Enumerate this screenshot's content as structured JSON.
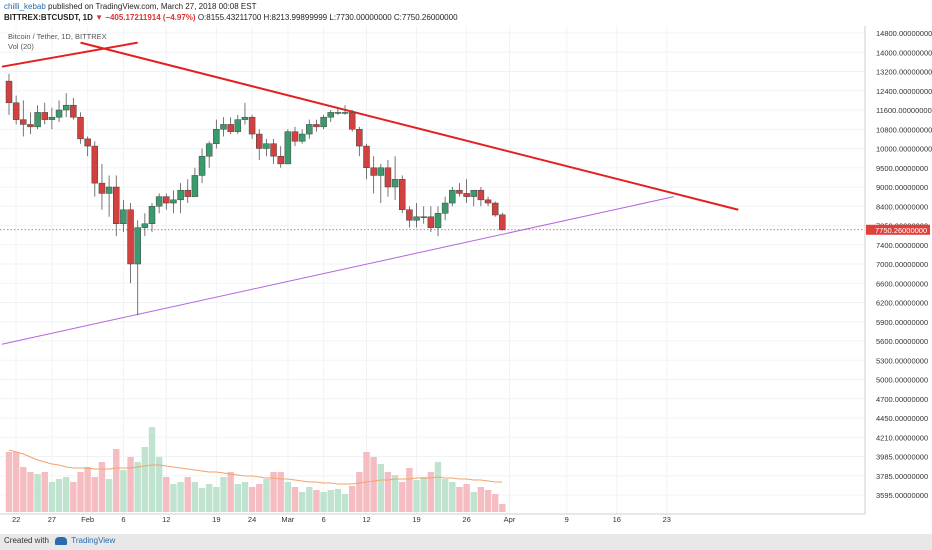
{
  "header": {
    "author": "chilli_kebab",
    "published": "published on TradingView.com, March 27, 2018 00:08 EST",
    "symbol": "BITTREX:BTCUSDT, 1D",
    "change": "▼ −405.17211914 (−4.97%)",
    "open": "O:8155.43211700",
    "high": "H:8213.99899999",
    "low": "L:7730.00000000",
    "close": "C:7750.26000000"
  },
  "legend": {
    "title": "Bitcoin / Tether, 1D, BITTREX",
    "volume": "Vol (20)"
  },
  "footer": {
    "created_with": "Created with",
    "brand": "TradingView"
  },
  "colors": {
    "up": "#3a9a6c",
    "down": "#d0413f",
    "up_vol": "#bfe3cf",
    "down_vol": "#f5bcc2",
    "trend_red": "#e51f1f",
    "trend_purple": "#b564e0",
    "price_tag": "#e0403c"
  },
  "chart_data": {
    "type": "candlestick",
    "title": "Bitcoin / Tether, 1D, BITTREX",
    "y_axis_ticks": [
      "14800.00000000",
      "14000.00000000",
      "13200.00000000",
      "12400.00000000",
      "11600.00000000",
      "10800.00000000",
      "10000.00000000",
      "9500.00000000",
      "9000.00000000",
      "8400.00000000",
      "7850.00000000",
      "7400.00000000",
      "7000.00000000",
      "6600.00000000",
      "6200.00000000",
      "5900.00000000",
      "5600.00000000",
      "5300.00000000",
      "5000.00000000",
      "4700.00000000",
      "4450.00000000",
      "4210.00000000",
      "3985.00000000",
      "3785.00000000",
      "3595.00000000"
    ],
    "x_axis_labels": [
      {
        "label": "22",
        "index": 1
      },
      {
        "label": "27",
        "index": 6
      },
      {
        "label": "Feb",
        "index": 11
      },
      {
        "label": "6",
        "index": 16
      },
      {
        "label": "12",
        "index": 22
      },
      {
        "label": "19",
        "index": 29
      },
      {
        "label": "24",
        "index": 34
      },
      {
        "label": "Mar",
        "index": 39
      },
      {
        "label": "6",
        "index": 44
      },
      {
        "label": "12",
        "index": 50
      },
      {
        "label": "19",
        "index": 57
      },
      {
        "label": "26",
        "index": 64
      },
      {
        "label": "Apr",
        "index": 70
      },
      {
        "label": "9",
        "index": 78
      },
      {
        "label": "16",
        "index": 85
      },
      {
        "label": "23",
        "index": 92
      }
    ],
    "last_price_label": "7750.26000000",
    "last_price": 7750.26,
    "candles": [
      {
        "o": 12800,
        "h": 13100,
        "l": 11400,
        "c": 11900
      },
      {
        "o": 11900,
        "h": 12200,
        "l": 11000,
        "c": 11200
      },
      {
        "o": 11200,
        "h": 12000,
        "l": 10500,
        "c": 11000
      },
      {
        "o": 11000,
        "h": 11500,
        "l": 10600,
        "c": 10900
      },
      {
        "o": 10900,
        "h": 11800,
        "l": 10800,
        "c": 11500
      },
      {
        "o": 11500,
        "h": 11900,
        "l": 11000,
        "c": 11200
      },
      {
        "o": 11200,
        "h": 11700,
        "l": 10800,
        "c": 11300
      },
      {
        "o": 11300,
        "h": 12000,
        "l": 11100,
        "c": 11600
      },
      {
        "o": 11600,
        "h": 12300,
        "l": 11300,
        "c": 11800
      },
      {
        "o": 11800,
        "h": 12100,
        "l": 11200,
        "c": 11300
      },
      {
        "o": 11300,
        "h": 11500,
        "l": 10200,
        "c": 10400
      },
      {
        "o": 10400,
        "h": 10500,
        "l": 9800,
        "c": 10100
      },
      {
        "o": 10100,
        "h": 10300,
        "l": 8700,
        "c": 9100
      },
      {
        "o": 9100,
        "h": 9600,
        "l": 8300,
        "c": 8800
      },
      {
        "o": 8800,
        "h": 9300,
        "l": 8100,
        "c": 9000
      },
      {
        "o": 9000,
        "h": 9300,
        "l": 7600,
        "c": 7900
      },
      {
        "o": 7900,
        "h": 8600,
        "l": 7700,
        "c": 8300
      },
      {
        "o": 8300,
        "h": 8500,
        "l": 6600,
        "c": 7000
      },
      {
        "o": 7000,
        "h": 8000,
        "l": 6000,
        "c": 7800
      },
      {
        "o": 7800,
        "h": 8200,
        "l": 7600,
        "c": 7900
      },
      {
        "o": 7900,
        "h": 8500,
        "l": 7700,
        "c": 8400
      },
      {
        "o": 8400,
        "h": 8800,
        "l": 8200,
        "c": 8700
      },
      {
        "o": 8700,
        "h": 8800,
        "l": 8300,
        "c": 8500
      },
      {
        "o": 8500,
        "h": 8900,
        "l": 8200,
        "c": 8600
      },
      {
        "o": 8600,
        "h": 9100,
        "l": 8200,
        "c": 8900
      },
      {
        "o": 8900,
        "h": 9200,
        "l": 8500,
        "c": 8700
      },
      {
        "o": 8700,
        "h": 9500,
        "l": 8700,
        "c": 9300
      },
      {
        "o": 9300,
        "h": 10000,
        "l": 9100,
        "c": 9800
      },
      {
        "o": 9800,
        "h": 10300,
        "l": 9500,
        "c": 10200
      },
      {
        "o": 10200,
        "h": 11200,
        "l": 10000,
        "c": 10800
      },
      {
        "o": 10800,
        "h": 11300,
        "l": 10500,
        "c": 11000
      },
      {
        "o": 11000,
        "h": 11300,
        "l": 10600,
        "c": 10700
      },
      {
        "o": 10700,
        "h": 11400,
        "l": 10600,
        "c": 11200
      },
      {
        "o": 11200,
        "h": 11900,
        "l": 11000,
        "c": 11300
      },
      {
        "o": 11300,
        "h": 11400,
        "l": 10400,
        "c": 10600
      },
      {
        "o": 10600,
        "h": 10800,
        "l": 9700,
        "c": 10000
      },
      {
        "o": 10000,
        "h": 10400,
        "l": 9800,
        "c": 10200
      },
      {
        "o": 10200,
        "h": 10400,
        "l": 9600,
        "c": 9800
      },
      {
        "o": 9800,
        "h": 10100,
        "l": 9500,
        "c": 9600
      },
      {
        "o": 9600,
        "h": 10800,
        "l": 9600,
        "c": 10700
      },
      {
        "o": 10700,
        "h": 10900,
        "l": 10100,
        "c": 10300
      },
      {
        "o": 10300,
        "h": 10800,
        "l": 10200,
        "c": 10600
      },
      {
        "o": 10600,
        "h": 11200,
        "l": 10400,
        "c": 11000
      },
      {
        "o": 11000,
        "h": 11200,
        "l": 10700,
        "c": 10900
      },
      {
        "o": 10900,
        "h": 11400,
        "l": 10800,
        "c": 11300
      },
      {
        "o": 11300,
        "h": 11600,
        "l": 11100,
        "c": 11500
      },
      {
        "o": 11500,
        "h": 11700,
        "l": 11400,
        "c": 11500
      },
      {
        "o": 11500,
        "h": 11800,
        "l": 11400,
        "c": 11500
      },
      {
        "o": 11500,
        "h": 11600,
        "l": 10700,
        "c": 10800
      },
      {
        "o": 10800,
        "h": 10900,
        "l": 9800,
        "c": 10100
      },
      {
        "o": 10100,
        "h": 10200,
        "l": 9200,
        "c": 9500
      },
      {
        "o": 9500,
        "h": 9800,
        "l": 8800,
        "c": 9300
      },
      {
        "o": 9300,
        "h": 9600,
        "l": 8500,
        "c": 9500
      },
      {
        "o": 9500,
        "h": 9700,
        "l": 8700,
        "c": 9000
      },
      {
        "o": 9000,
        "h": 9800,
        "l": 8600,
        "c": 9200
      },
      {
        "o": 9200,
        "h": 9300,
        "l": 8200,
        "c": 8300
      },
      {
        "o": 8300,
        "h": 8400,
        "l": 7800,
        "c": 8000
      },
      {
        "o": 8000,
        "h": 8500,
        "l": 7800,
        "c": 8100
      },
      {
        "o": 8100,
        "h": 8400,
        "l": 7900,
        "c": 8100
      },
      {
        "o": 8100,
        "h": 8400,
        "l": 7700,
        "c": 7800
      },
      {
        "o": 7800,
        "h": 8400,
        "l": 7600,
        "c": 8200
      },
      {
        "o": 8200,
        "h": 8700,
        "l": 8000,
        "c": 8500
      },
      {
        "o": 8500,
        "h": 9000,
        "l": 8400,
        "c": 8900
      },
      {
        "o": 8900,
        "h": 9100,
        "l": 8700,
        "c": 8800
      },
      {
        "o": 8800,
        "h": 9200,
        "l": 8500,
        "c": 8700
      },
      {
        "o": 8700,
        "h": 8900,
        "l": 8400,
        "c": 8900
      },
      {
        "o": 8900,
        "h": 9000,
        "l": 8400,
        "c": 8600
      },
      {
        "o": 8600,
        "h": 8700,
        "l": 8400,
        "c": 8500
      },
      {
        "o": 8500,
        "h": 8550,
        "l": 8100,
        "c": 8150
      },
      {
        "o": 8155,
        "h": 8214,
        "l": 7730,
        "c": 7750
      }
    ],
    "volumes": [
      0.6,
      0.6,
      0.45,
      0.4,
      0.38,
      0.4,
      0.3,
      0.33,
      0.35,
      0.3,
      0.4,
      0.45,
      0.35,
      0.5,
      0.33,
      0.63,
      0.42,
      0.55,
      0.5,
      0.65,
      0.85,
      0.55,
      0.35,
      0.28,
      0.3,
      0.35,
      0.3,
      0.24,
      0.28,
      0.25,
      0.35,
      0.4,
      0.28,
      0.3,
      0.25,
      0.28,
      0.33,
      0.4,
      0.4,
      0.3,
      0.25,
      0.2,
      0.25,
      0.22,
      0.2,
      0.22,
      0.23,
      0.18,
      0.26,
      0.4,
      0.6,
      0.55,
      0.48,
      0.4,
      0.37,
      0.3,
      0.44,
      0.32,
      0.35,
      0.4,
      0.5,
      0.33,
      0.3,
      0.25,
      0.28,
      0.2,
      0.25,
      0.22,
      0.18,
      0.08
    ],
    "volume_ma": [
      0.62,
      0.6,
      0.58,
      0.55,
      0.52,
      0.5,
      0.48,
      0.47,
      0.45,
      0.44,
      0.44,
      0.44,
      0.43,
      0.43,
      0.43,
      0.44,
      0.44,
      0.44,
      0.45,
      0.46,
      0.47,
      0.47,
      0.46,
      0.45,
      0.44,
      0.43,
      0.42,
      0.41,
      0.4,
      0.4,
      0.39,
      0.38,
      0.37,
      0.36,
      0.36,
      0.35,
      0.34,
      0.34,
      0.33,
      0.33,
      0.32,
      0.31,
      0.3,
      0.3,
      0.29,
      0.29,
      0.28,
      0.28,
      0.28,
      0.29,
      0.3,
      0.31,
      0.32,
      0.32,
      0.33,
      0.33,
      0.33,
      0.34,
      0.34,
      0.34,
      0.35,
      0.34,
      0.34,
      0.33,
      0.33,
      0.32,
      0.32,
      0.31,
      0.3,
      0.3
    ],
    "trendlines": [
      {
        "color": "red",
        "from": {
          "index": -1,
          "price": 13400
        },
        "to": {
          "index": 18,
          "price": 14400
        }
      },
      {
        "color": "red",
        "from": {
          "index": 10,
          "price": 14400
        },
        "to": {
          "index": 102,
          "price": 8300
        }
      },
      {
        "color": "purple",
        "from": {
          "index": -1,
          "price": 5550
        },
        "to": {
          "index": 93,
          "price": 8700
        }
      }
    ]
  }
}
